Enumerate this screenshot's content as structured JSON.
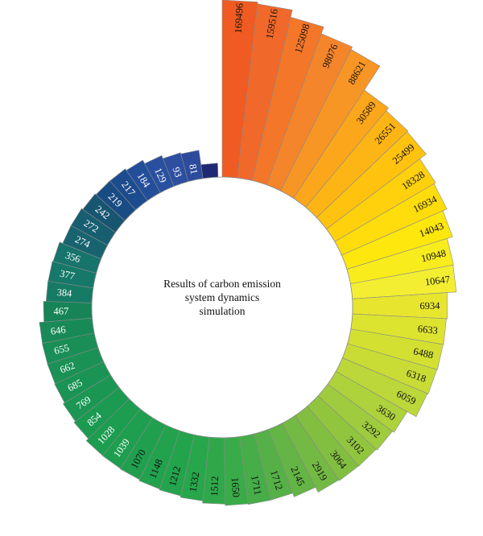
{
  "chart_data": {
    "type": "bar",
    "subtype": "radial-bar",
    "title": [
      "Results of carbon emission",
      "system dynamics",
      "simulation"
    ],
    "values": [
      169496,
      159516,
      125098,
      98076,
      88621,
      30589,
      26551,
      25499,
      18328,
      16934,
      14043,
      10948,
      10647,
      6934,
      6633,
      6488,
      6318,
      6059,
      3630,
      3292,
      3102,
      3064,
      2919,
      2145,
      1712,
      1711,
      1650,
      1512,
      1332,
      1212,
      1148,
      1070,
      1039,
      1028,
      854,
      769,
      685,
      662,
      655,
      646,
      467,
      384,
      377,
      356,
      274,
      272,
      242,
      219,
      217,
      184,
      129,
      93,
      81,
      8
    ],
    "colors": [
      "#ef5b22",
      "#f0682a",
      "#f37629",
      "#f5852a",
      "#f79525",
      "#fca61b",
      "#fdb515",
      "#fec20f",
      "#ffd10c",
      "#ffdc0c",
      "#fde70d",
      "#f8ec1d",
      "#f3ee32",
      "#e8e52f",
      "#dde42f",
      "#d3e032",
      "#c8dc35",
      "#bcd73a",
      "#aed23c",
      "#9fcb3e",
      "#91c53e",
      "#82bf41",
      "#73b944",
      "#64b446",
      "#55b047",
      "#46ad48",
      "#3aab49",
      "#30a84a",
      "#28a64b",
      "#23a44c",
      "#22a24d",
      "#20a04e",
      "#1e9e4f",
      "#1c9d50",
      "#1c9a52",
      "#1b9753",
      "#1a9454",
      "#1a9155",
      "#198e56",
      "#188a57",
      "#168457",
      "#167b65",
      "#167868",
      "#16746b",
      "#17646f",
      "#175e71",
      "#185571",
      "#1a4c84",
      "#1d4c8e",
      "#234e9a",
      "#29509f",
      "#2e4ea0",
      "#2d4b9c",
      "#1f2873"
    ],
    "label_colors": [
      "#111111",
      "#111111",
      "#111111",
      "#111111",
      "#111111",
      "#111111",
      "#111111",
      "#111111",
      "#111111",
      "#111111",
      "#111111",
      "#111111",
      "#111111",
      "#111111",
      "#111111",
      "#111111",
      "#111111",
      "#111111",
      "#111111",
      "#111111",
      "#111111",
      "#111111",
      "#111111",
      "#111111",
      "#111111",
      "#111111",
      "#111111",
      "#111111",
      "#111111",
      "#111111",
      "#111111",
      "#111111",
      "#ffffff",
      "#ffffff",
      "#ffffff",
      "#ffffff",
      "#ffffff",
      "#ffffff",
      "#ffffff",
      "#ffffff",
      "#ffffff",
      "#ffffff",
      "#ffffff",
      "#ffffff",
      "#ffffff",
      "#ffffff",
      "#ffffff",
      "#ffffff",
      "#ffffff",
      "#ffffff",
      "#ffffff",
      "#ffffff",
      "#ffffff",
      "#ffffff"
    ]
  }
}
